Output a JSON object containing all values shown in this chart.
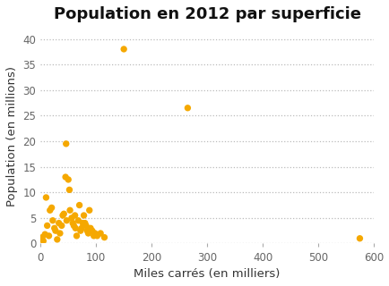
{
  "title": "Population en 2012 par superficie",
  "xlabel": "Miles carrés (en milliers)",
  "ylabel": "Population (en millions)",
  "dot_color": "#F5A800",
  "dot_size": 28,
  "xlim": [
    0,
    600
  ],
  "ylim": [
    0,
    42
  ],
  "xticks": [
    0,
    100,
    200,
    300,
    400,
    500,
    600
  ],
  "yticks": [
    0,
    5,
    10,
    15,
    20,
    25,
    30,
    35,
    40
  ],
  "background_color": "#ffffff",
  "points": [
    [
      3,
      1.2
    ],
    [
      5,
      0.5
    ],
    [
      8,
      1.8
    ],
    [
      10,
      9.0
    ],
    [
      12,
      3.5
    ],
    [
      15,
      1.5
    ],
    [
      17,
      6.5
    ],
    [
      20,
      7.0
    ],
    [
      22,
      4.5
    ],
    [
      25,
      3.0
    ],
    [
      27,
      2.5
    ],
    [
      30,
      0.8
    ],
    [
      33,
      4.0
    ],
    [
      35,
      2.0
    ],
    [
      38,
      3.5
    ],
    [
      40,
      5.5
    ],
    [
      42,
      5.8
    ],
    [
      45,
      13.0
    ],
    [
      47,
      4.5
    ],
    [
      50,
      12.5
    ],
    [
      52,
      10.5
    ],
    [
      53,
      6.5
    ],
    [
      56,
      5.0
    ],
    [
      58,
      4.0
    ],
    [
      60,
      3.5
    ],
    [
      62,
      5.5
    ],
    [
      63,
      3.0
    ],
    [
      65,
      1.5
    ],
    [
      68,
      4.5
    ],
    [
      70,
      7.5
    ],
    [
      72,
      2.5
    ],
    [
      74,
      3.0
    ],
    [
      76,
      4.0
    ],
    [
      78,
      5.5
    ],
    [
      80,
      4.0
    ],
    [
      82,
      3.5
    ],
    [
      84,
      2.5
    ],
    [
      86,
      2.0
    ],
    [
      88,
      6.5
    ],
    [
      90,
      3.0
    ],
    [
      93,
      2.5
    ],
    [
      96,
      1.5
    ],
    [
      98,
      2.0
    ],
    [
      102,
      1.5
    ],
    [
      108,
      2.0
    ],
    [
      115,
      1.2
    ],
    [
      46,
      19.5
    ],
    [
      150,
      38.0
    ],
    [
      265,
      26.5
    ],
    [
      575,
      1.0
    ]
  ]
}
